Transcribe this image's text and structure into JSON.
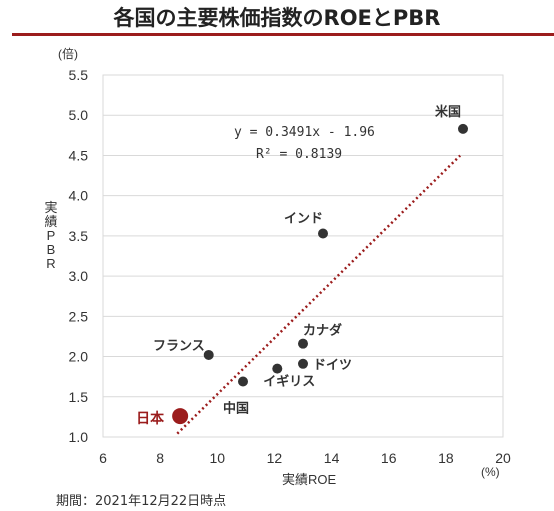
{
  "title": "各国の主要株価指数のROEとPBR",
  "period": "期間：2021年12月22日時点",
  "chart_data": {
    "type": "scatter",
    "title": "各国の主要株価指数のROEとPBR",
    "xlabel": "実績ROE",
    "ylabel": "実績PBR",
    "x_unit": "(%)",
    "y_unit": "(倍)",
    "xlim": [
      6,
      20
    ],
    "ylim": [
      1.0,
      5.5
    ],
    "x_ticks": [
      "6",
      "8",
      "10",
      "12",
      "14",
      "16",
      "18",
      "20"
    ],
    "y_ticks": [
      "1.0",
      "1.5",
      "2.0",
      "2.5",
      "3.0",
      "3.5",
      "4.0",
      "4.5",
      "5.0",
      "5.5"
    ],
    "grid": "horizontal",
    "points": [
      {
        "label": "米国",
        "x": 18.6,
        "y": 4.83
      },
      {
        "label": "インド",
        "x": 13.7,
        "y": 3.53
      },
      {
        "label": "カナダ",
        "x": 13.0,
        "y": 2.16
      },
      {
        "label": "ドイツ",
        "x": 13.0,
        "y": 1.91
      },
      {
        "label": "イギリス",
        "x": 12.1,
        "y": 1.85
      },
      {
        "label": "フランス",
        "x": 9.7,
        "y": 2.02
      },
      {
        "label": "中国",
        "x": 10.9,
        "y": 1.69
      },
      {
        "label": "日本",
        "x": 8.7,
        "y": 1.26,
        "highlight": true
      }
    ],
    "trendline": {
      "equation": "y = 0.3491x - 1.96",
      "r2": "R² = 0.8139",
      "slope": 0.3491,
      "intercept": -1.96,
      "x_range": [
        8.6,
        18.5
      ]
    },
    "colors": {
      "point": "#333333",
      "highlight": "#9b1c1c",
      "trendline": "#9b1c1c",
      "grid": "#d9d9d9"
    }
  }
}
